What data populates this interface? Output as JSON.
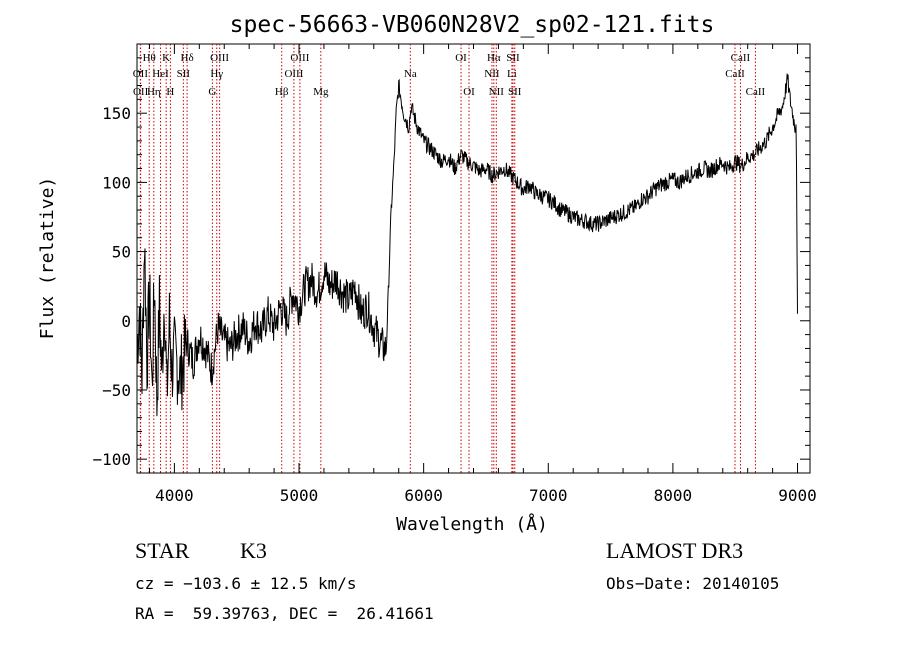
{
  "chart_data": {
    "type": "line",
    "title": "spec-56663-VB060N28V2_sp02-121.fits",
    "xlabel": "Wavelength (Å)",
    "ylabel": "Flux (relative)",
    "xlim": [
      3700,
      9100
    ],
    "ylim": [
      -110,
      200
    ],
    "xticks": [
      4000,
      5000,
      6000,
      7000,
      8000,
      9000
    ],
    "yticks": [
      -100,
      -50,
      0,
      50,
      100,
      150
    ],
    "grid": false,
    "series": [
      {
        "color": "#000000",
        "x": [
          3700,
          3720,
          3740,
          3760,
          3780,
          3800,
          3820,
          3840,
          3860,
          3880,
          3900,
          3920,
          3940,
          3960,
          3980,
          4000,
          4050,
          4100,
          4150,
          4200,
          4250,
          4300,
          4350,
          4400,
          4450,
          4500,
          4550,
          4600,
          4650,
          4700,
          4750,
          4800,
          4850,
          4900,
          4950,
          5000,
          5050,
          5100,
          5150,
          5200,
          5250,
          5300,
          5350,
          5400,
          5450,
          5500,
          5550,
          5600,
          5650,
          5680,
          5700,
          5720,
          5740,
          5760,
          5780,
          5800,
          5820,
          5840,
          5860,
          5880,
          5900,
          5950,
          6000,
          6050,
          6100,
          6150,
          6200,
          6250,
          6300,
          6350,
          6400,
          6450,
          6500,
          6550,
          6600,
          6650,
          6700,
          6750,
          6800,
          6850,
          6900,
          6950,
          7000,
          7050,
          7100,
          7150,
          7200,
          7250,
          7300,
          7350,
          7400,
          7450,
          7500,
          7550,
          7600,
          7650,
          7700,
          7750,
          7800,
          7850,
          7900,
          7950,
          8000,
          8050,
          8100,
          8150,
          8200,
          8250,
          8300,
          8350,
          8400,
          8450,
          8500,
          8550,
          8600,
          8650,
          8700,
          8750,
          8800,
          8850,
          8880,
          8900,
          8920,
          8940,
          8960,
          8980,
          8990,
          9000
        ],
        "y": [
          -20,
          10,
          -40,
          60,
          -30,
          20,
          -50,
          30,
          -60,
          10,
          -40,
          20,
          -55,
          0,
          -35,
          -25,
          -40,
          -15,
          -30,
          -10,
          -20,
          -35,
          -5,
          -15,
          -20,
          -10,
          -5,
          -15,
          0,
          -8,
          5,
          -5,
          10,
          0,
          20,
          10,
          25,
          30,
          20,
          35,
          25,
          30,
          20,
          15,
          25,
          5,
          10,
          -5,
          -15,
          -20,
          -20,
          30,
          80,
          110,
          150,
          170,
          160,
          150,
          145,
          140,
          155,
          140,
          130,
          125,
          120,
          115,
          118,
          110,
          120,
          115,
          112,
          108,
          110,
          105,
          108,
          110,
          105,
          100,
          95,
          98,
          92,
          90,
          88,
          85,
          80,
          78,
          75,
          73,
          72,
          70,
          70,
          72,
          74,
          76,
          78,
          80,
          82,
          88,
          90,
          95,
          98,
          100,
          102,
          100,
          104,
          106,
          108,
          110,
          108,
          112,
          114,
          110,
          115,
          112,
          118,
          120,
          125,
          130,
          140,
          150,
          155,
          165,
          175,
          160,
          150,
          140,
          145,
          0
        ]
      }
    ],
    "annotations": [
      {
        "label": "Hθ",
        "wave": 3798,
        "row": 0
      },
      {
        "label": "K",
        "wave": 3934,
        "row": 0
      },
      {
        "label": "Hδ",
        "wave": 4102,
        "row": 0
      },
      {
        "label": "OIII",
        "wave": 4363,
        "row": 0
      },
      {
        "label": "OIII",
        "wave": 5007,
        "row": 0
      },
      {
        "label": "OI",
        "wave": 6300,
        "row": 0
      },
      {
        "label": "Hα",
        "wave": 6563,
        "row": 0
      },
      {
        "label": "SII",
        "wave": 6717,
        "row": 0
      },
      {
        "label": "CaII",
        "wave": 8542,
        "row": 0
      },
      {
        "label": "OII",
        "wave": 3727,
        "row": 1
      },
      {
        "label": "HeI",
        "wave": 3889,
        "row": 1
      },
      {
        "label": "SII",
        "wave": 4072,
        "row": 1
      },
      {
        "label": "Hγ",
        "wave": 4340,
        "row": 1
      },
      {
        "label": "OIII",
        "wave": 4959,
        "row": 1
      },
      {
        "label": "Na",
        "wave": 5893,
        "row": 1
      },
      {
        "label": "NII",
        "wave": 6548,
        "row": 1
      },
      {
        "label": "Li",
        "wave": 6708,
        "row": 1
      },
      {
        "label": "CaII",
        "wave": 8498,
        "row": 1
      },
      {
        "label": "OII",
        "wave": 3729,
        "row": 2
      },
      {
        "label": "Hη",
        "wave": 3835,
        "row": 2
      },
      {
        "label": "H",
        "wave": 3968,
        "row": 2
      },
      {
        "label": "G",
        "wave": 4305,
        "row": 2
      },
      {
        "label": "Hβ",
        "wave": 4861,
        "row": 2
      },
      {
        "label": "Mg",
        "wave": 5175,
        "row": 2
      },
      {
        "label": "OI",
        "wave": 6364,
        "row": 2
      },
      {
        "label": "NII",
        "wave": 6583,
        "row": 2
      },
      {
        "label": "SII",
        "wave": 6731,
        "row": 2
      },
      {
        "label": "CaII",
        "wave": 8662,
        "row": 2
      }
    ]
  },
  "info": {
    "class": "STAR",
    "subclass": "K3",
    "survey": "LAMOST DR3",
    "cz": "cz = −103.6 ± 12.5 km/s",
    "obs_date": "Obs−Date: 20140105",
    "radec": "RA =  59.39763, DEC =  26.41661"
  }
}
